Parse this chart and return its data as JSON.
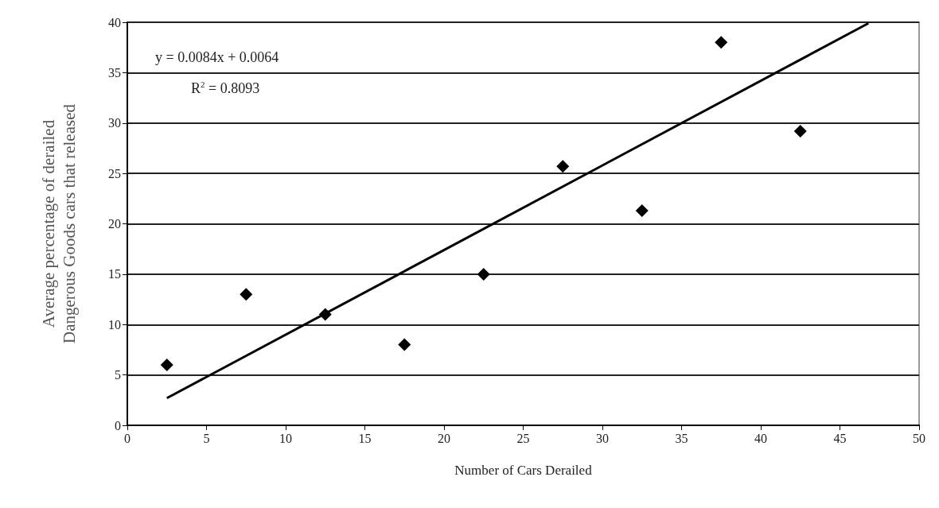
{
  "chart_data": {
    "type": "scatter",
    "xlabel": "Number of Cars Derailed",
    "ylabel": "Average percentage of derailed\nDangerous Goods cars that released",
    "series": [
      {
        "color": "#000000",
        "marker": "diamond",
        "x": [
          2.5,
          7.5,
          12.5,
          17.5,
          22.5,
          27.5,
          32.5,
          37.5,
          42.5
        ],
        "values": [
          6,
          13,
          11,
          8,
          15,
          25.7,
          21.3,
          38,
          29.2
        ]
      },
      {
        "type": "line",
        "color": "#000000",
        "marker": "none",
        "line_style": "solid",
        "x": [
          2.5,
          46.8
        ],
        "values": [
          2.7,
          39.9
        ]
      }
    ],
    "annotations": [
      "y = 0.0084x + 0.0064",
      "R$^{2}$ = 0.8093"
    ],
    "xlim": [
      0,
      50
    ],
    "xticks": [
      0,
      5,
      10,
      15,
      20,
      25,
      30,
      35,
      40,
      45,
      50
    ],
    "ylim": [
      0,
      40
    ],
    "yticks": [
      0,
      5,
      10,
      15,
      20,
      25,
      30,
      35,
      40
    ],
    "grid": "y"
  }
}
